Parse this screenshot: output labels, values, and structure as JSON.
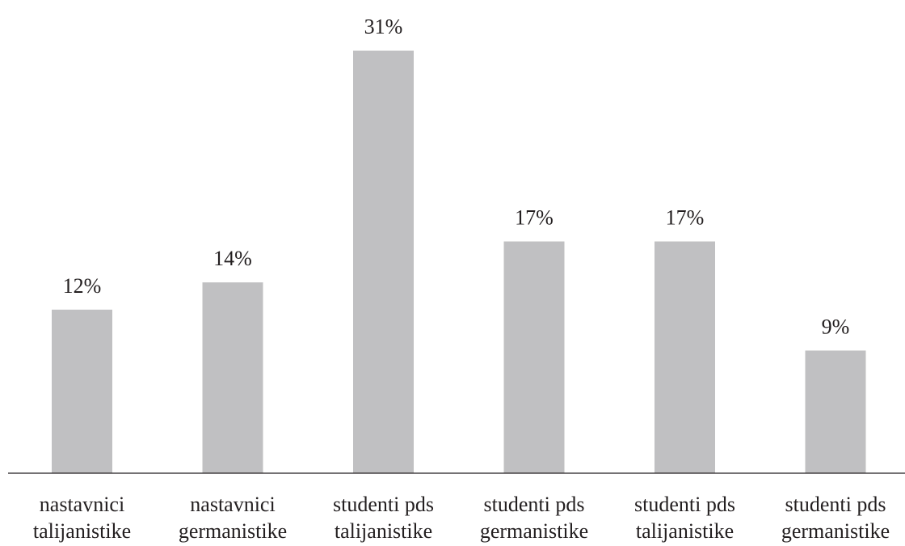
{
  "chart_data": {
    "type": "bar",
    "categories": [
      [
        "nastavnici",
        "talijanistike"
      ],
      [
        "nastavnici",
        "germanistike"
      ],
      [
        "studenti pds",
        "talijanistike"
      ],
      [
        "studenti pds",
        "germanistike"
      ],
      [
        "studenti pds",
        "talijanistike"
      ],
      [
        "studenti pds",
        "germanistike"
      ]
    ],
    "values": [
      12,
      14,
      31,
      17,
      17,
      9
    ],
    "data_labels": [
      "12%",
      "14%",
      "31%",
      "17%",
      "17%",
      "9%"
    ],
    "value_unit": "%",
    "ylim": [
      0,
      33
    ],
    "grid": false,
    "y_axis_visible": false,
    "legend": "none",
    "colors": {
      "bar": "#c0c0c2",
      "axis": "#231f20",
      "text": "#231f20"
    }
  }
}
